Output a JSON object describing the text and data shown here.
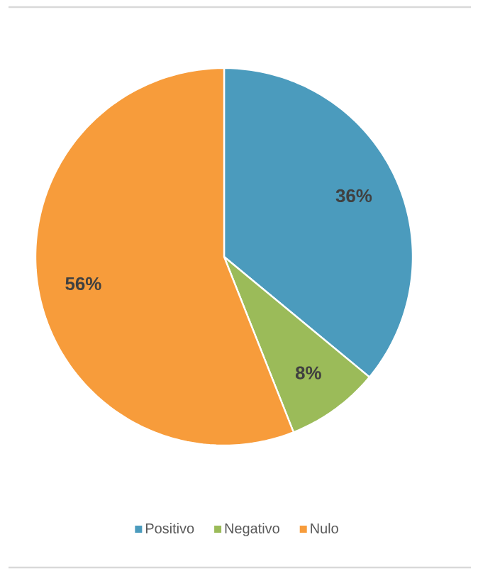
{
  "chart_data": {
    "type": "pie",
    "categories": [
      "Positivo",
      "Negativo",
      "Nulo"
    ],
    "values": [
      36,
      8,
      56
    ],
    "colors": [
      "#4b9bbd",
      "#9bbb59",
      "#f79c3b"
    ],
    "value_labels": [
      "36%",
      "8%",
      "56%"
    ],
    "legend": "bottom"
  }
}
